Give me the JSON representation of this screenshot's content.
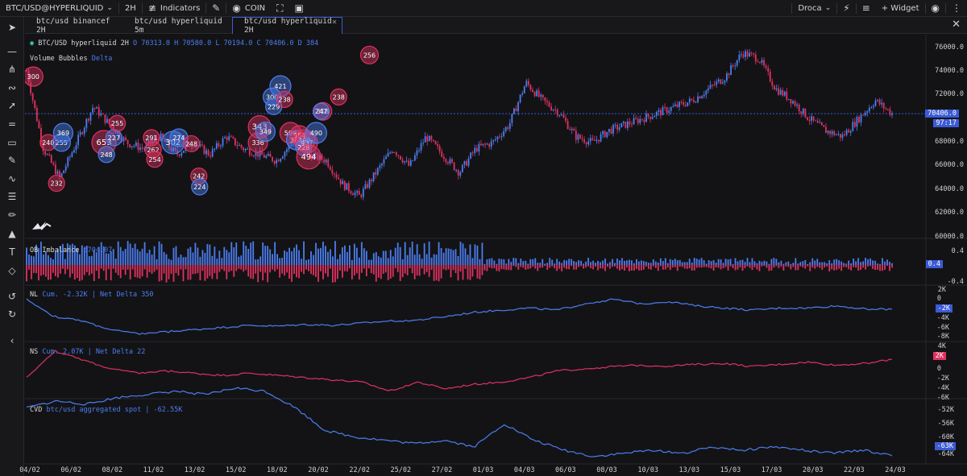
{
  "toolbar": {
    "symbol": "BTC/USD@HYPERLIQUID",
    "interval": "2H",
    "indicators": "Indicators",
    "coin": "COIN",
    "layout": "Droca",
    "widget": "+ Widget"
  },
  "tabs": [
    {
      "label": "btc/usd binancef 2H"
    },
    {
      "label": "btc/usd hyperliquid 5m"
    },
    {
      "label": "btc/usd hyperliquid 2H"
    }
  ],
  "legend": {
    "symbol": "BTC/USD hyperliquid 2H",
    "ohlc": "O 70313.0 H 70580.0 L 70194.0 C 70406.0 D 384",
    "bubbles_name": "Volume Bubbles",
    "bubbles_mode": "Delta"
  },
  "panes": {
    "ob": {
      "name": "OB Imbalance",
      "value": "5704.07"
    },
    "nl": {
      "name": "NL",
      "value": "Cum. -2.32K | Net Delta 350"
    },
    "ns": {
      "name": "NS",
      "value": "Cum. 2.07K | Net Delta 22"
    },
    "cvd": {
      "name": "CVD",
      "value": "btc/usd aggregated spot | -62.55K"
    }
  },
  "price_axis": {
    "ticks": [
      "76000.0",
      "74000.0",
      "72000.0",
      "68000.0",
      "66000.0",
      "64000.0",
      "62000.0",
      "60000.0"
    ],
    "last_price": "70406.0",
    "countdown": "97:17"
  },
  "ob_axis": {
    "ticks": [
      "0.4",
      "-0.4"
    ],
    "badge": "0.4"
  },
  "nl_axis": {
    "ticks": [
      "2K",
      "0",
      "-4K",
      "-6K",
      "-8K"
    ],
    "badge": "-2K"
  },
  "ns_axis": {
    "ticks": [
      "4K",
      "0",
      "-2K",
      "-4K",
      "-6K"
    ],
    "badge": "2K"
  },
  "cvd_axis": {
    "ticks": [
      "-52K",
      "-56K",
      "-60K",
      "-64K"
    ],
    "badge": "-63K"
  },
  "time_axis": [
    "04/02",
    "06/02",
    "08/02",
    "11/02",
    "13/02",
    "15/02",
    "18/02",
    "20/02",
    "22/02",
    "25/02",
    "27/02",
    "01/03",
    "04/03",
    "06/03",
    "08/03",
    "10/03",
    "13/03",
    "15/03",
    "17/03",
    "20/03",
    "22/03",
    "24/03"
  ],
  "colors": {
    "up": "#4c7ef0",
    "down": "#e0325f",
    "bg": "#131316",
    "accent": "#3b5bd6"
  },
  "chart_data": {
    "type": "candlestick",
    "ylim": [
      60000,
      77000
    ],
    "price_path": [
      [
        0,
        74000
      ],
      [
        2,
        67500
      ],
      [
        4,
        65000
      ],
      [
        6,
        68000
      ],
      [
        8,
        71000
      ],
      [
        10,
        69500
      ],
      [
        12,
        68000
      ],
      [
        14,
        67500
      ],
      [
        16,
        68500
      ],
      [
        18,
        67000
      ],
      [
        20,
        68000
      ],
      [
        22,
        67000
      ],
      [
        24,
        68500
      ],
      [
        26,
        67500
      ],
      [
        28,
        67000
      ],
      [
        30,
        66500
      ],
      [
        32,
        68000
      ],
      [
        34,
        67000
      ],
      [
        36,
        66500
      ],
      [
        38,
        64500
      ],
      [
        40,
        63500
      ],
      [
        42,
        65500
      ],
      [
        44,
        67500
      ],
      [
        46,
        66000
      ],
      [
        48,
        68500
      ],
      [
        50,
        67000
      ],
      [
        52,
        65500
      ],
      [
        54,
        67500
      ],
      [
        56,
        68000
      ],
      [
        58,
        69500
      ],
      [
        60,
        73000
      ],
      [
        62,
        71500
      ],
      [
        64,
        70500
      ],
      [
        66,
        68500
      ],
      [
        68,
        68000
      ],
      [
        70,
        69000
      ],
      [
        72,
        69500
      ],
      [
        74,
        70000
      ],
      [
        76,
        70500
      ],
      [
        78,
        71000
      ],
      [
        80,
        71500
      ],
      [
        82,
        72500
      ],
      [
        84,
        73500
      ],
      [
        86,
        75500
      ],
      [
        88,
        75000
      ],
      [
        90,
        72500
      ],
      [
        92,
        71500
      ],
      [
        94,
        70000
      ],
      [
        96,
        69000
      ],
      [
        98,
        68500
      ],
      [
        100,
        70000
      ],
      [
        102,
        71500
      ],
      [
        104,
        70406
      ]
    ],
    "bubbles": [
      {
        "t": 0.8,
        "price": 73500,
        "label": "300",
        "side": "sell",
        "size": 12
      },
      {
        "t": 2.6,
        "price": 68000,
        "label": "240",
        "side": "sell",
        "size": 10
      },
      {
        "t": 3.6,
        "price": 64600,
        "label": "232",
        "side": "sell",
        "size": 10
      },
      {
        "t": 4.2,
        "price": 68000,
        "label": "255",
        "side": "buy",
        "size": 11
      },
      {
        "t": 4.4,
        "price": 68800,
        "label": "369",
        "side": "buy",
        "size": 12
      },
      {
        "t": 9.3,
        "price": 68000,
        "label": "653",
        "side": "sell",
        "size": 15
      },
      {
        "t": 9.6,
        "price": 67000,
        "label": "248",
        "side": "buy",
        "size": 10
      },
      {
        "t": 10.5,
        "price": 68400,
        "label": "227",
        "side": "buy",
        "size": 10
      },
      {
        "t": 10.9,
        "price": 69600,
        "label": "255",
        "side": "sell",
        "size": 10
      },
      {
        "t": 15.0,
        "price": 68400,
        "label": "291",
        "side": "sell",
        "size": 10
      },
      {
        "t": 15.2,
        "price": 67400,
        "label": "262",
        "side": "sell",
        "size": 10
      },
      {
        "t": 15.4,
        "price": 66600,
        "label": "254",
        "side": "sell",
        "size": 10
      },
      {
        "t": 17.6,
        "price": 68000,
        "label": "302",
        "side": "buy",
        "size": 14
      },
      {
        "t": 18.3,
        "price": 68400,
        "label": "274",
        "side": "buy",
        "size": 11
      },
      {
        "t": 19.8,
        "price": 67900,
        "label": "248",
        "side": "sell",
        "size": 10
      },
      {
        "t": 20.7,
        "price": 65200,
        "label": "242",
        "side": "sell",
        "size": 10
      },
      {
        "t": 20.8,
        "price": 64300,
        "label": "224",
        "side": "buy",
        "size": 10
      },
      {
        "t": 28.0,
        "price": 69300,
        "label": "343",
        "side": "sell",
        "size": 14
      },
      {
        "t": 27.8,
        "price": 68000,
        "label": "336",
        "side": "sell",
        "size": 12
      },
      {
        "t": 28.7,
        "price": 68900,
        "label": "349",
        "side": "buy",
        "size": 12
      },
      {
        "t": 29.5,
        "price": 71800,
        "label": "300",
        "side": "buy",
        "size": 11
      },
      {
        "t": 29.7,
        "price": 71000,
        "label": "229",
        "side": "buy",
        "size": 10
      },
      {
        "t": 30.5,
        "price": 72700,
        "label": "421",
        "side": "buy",
        "size": 13
      },
      {
        "t": 31.0,
        "price": 71600,
        "label": "238",
        "side": "sell",
        "size": 10
      },
      {
        "t": 31.7,
        "price": 68800,
        "label": "500",
        "side": "sell",
        "size": 13
      },
      {
        "t": 32.4,
        "price": 68200,
        "label": "365",
        "side": "buy",
        "size": 12
      },
      {
        "t": 32.8,
        "price": 68600,
        "label": "354",
        "side": "sell",
        "size": 12
      },
      {
        "t": 33.4,
        "price": 68200,
        "label": "490",
        "side": "sell",
        "size": 13
      },
      {
        "t": 33.7,
        "price": 68000,
        "label": "437",
        "side": "sell",
        "size": 13
      },
      {
        "t": 33.3,
        "price": 67600,
        "label": "228",
        "side": "buy",
        "size": 10
      },
      {
        "t": 33.9,
        "price": 66800,
        "label": "494",
        "side": "sell",
        "size": 15
      },
      {
        "t": 34.8,
        "price": 68800,
        "label": "490",
        "side": "buy",
        "size": 13
      },
      {
        "t": 35.6,
        "price": 70600,
        "label": "318",
        "side": "sell",
        "size": 11
      },
      {
        "t": 35.4,
        "price": 70600,
        "label": "247",
        "side": "buy",
        "size": 10
      },
      {
        "t": 37.5,
        "price": 71800,
        "label": "238",
        "side": "sell",
        "size": 10
      },
      {
        "t": 41.2,
        "price": 75300,
        "label": "256",
        "side": "sell",
        "size": 11
      }
    ],
    "nl_series": [
      0,
      -4,
      -5,
      -7,
      -8,
      -7.5,
      -7,
      -6.5,
      -6,
      -6.2,
      -5.8,
      -6,
      -5.5,
      -5,
      -4.8,
      -4,
      -3,
      -2.5,
      -2,
      -2.5,
      -1,
      0,
      -1,
      -0.5,
      -1.5,
      -2,
      -2.5,
      -2,
      -2,
      -1.5,
      -2.2,
      -2.32
    ],
    "ns_series": [
      -2,
      4,
      2,
      0,
      -1,
      -0.5,
      -1,
      -1.5,
      -1,
      -1.5,
      -2,
      -2.5,
      -3,
      -5,
      -3,
      -4.5,
      -3.5,
      -3,
      -2,
      -0.5,
      0,
      0.5,
      0.8,
      0.6,
      1,
      1.2,
      0.5,
      1,
      1.5,
      0.8,
      1.2,
      2.07
    ],
    "cvd_series": [
      -48,
      -46,
      -47,
      -45,
      -44,
      -43,
      -44,
      -42,
      -43,
      -48,
      -55,
      -57,
      -58,
      -59,
      -58,
      -60,
      -53,
      -58,
      -61,
      -63,
      -62,
      -61,
      -62,
      -60,
      -61,
      -60,
      -61,
      -62,
      -61,
      -62.55
    ]
  }
}
